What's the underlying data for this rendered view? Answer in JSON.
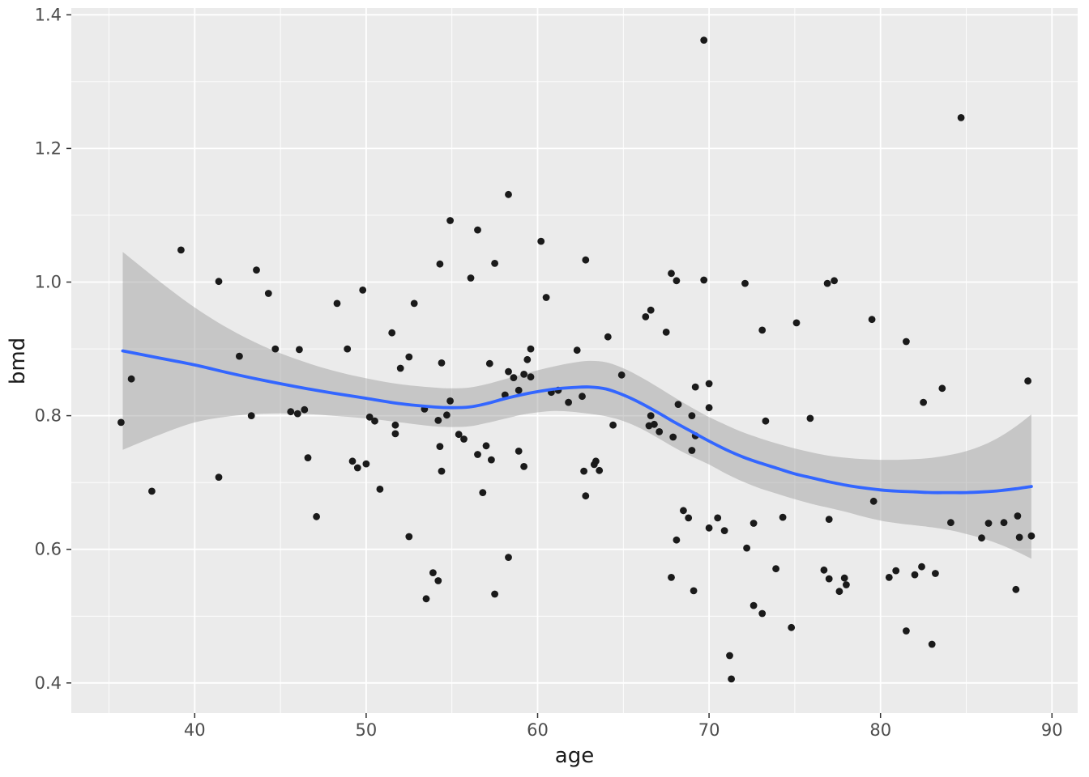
{
  "chart_data": {
    "type": "scatter",
    "title": "",
    "xlabel": "age",
    "ylabel": "bmd",
    "xlim": [
      32.8,
      91.5
    ],
    "ylim": [
      0.355,
      1.41
    ],
    "x_ticks": [
      40,
      50,
      60,
      70,
      80,
      90
    ],
    "x_tick_labels": [
      "40",
      "50",
      "60",
      "70",
      "80",
      "90"
    ],
    "y_ticks": [
      0.4,
      0.6,
      0.8,
      1.0,
      1.2,
      1.4
    ],
    "y_tick_labels": [
      "0.4",
      "0.6",
      "0.8",
      "1.0",
      "1.2",
      "1.4"
    ],
    "x_minor": [
      35,
      45,
      55,
      65,
      75,
      85
    ],
    "y_minor": [
      0.5,
      0.7,
      0.9,
      1.1,
      1.3
    ],
    "grid": true,
    "legend": "none",
    "colors": {
      "panel": "#EBEBEB",
      "grid": "#FFFFFF",
      "point": "#1A1A1A",
      "line": "#3366FF",
      "ribbon": "#999999",
      "ribbon_opacity": 0.45,
      "tick": "#333333",
      "tick_label": "#4D4D4D",
      "axis_title": "#1A1A1A"
    },
    "points": [
      [
        36.3,
        0.855
      ],
      [
        35.7,
        0.79
      ],
      [
        37.5,
        0.687
      ],
      [
        39.2,
        1.048
      ],
      [
        41.4,
        1.001
      ],
      [
        41.4,
        0.708
      ],
      [
        42.6,
        0.889
      ],
      [
        43.6,
        1.018
      ],
      [
        43.3,
        0.8
      ],
      [
        44.3,
        0.983
      ],
      [
        44.7,
        0.9
      ],
      [
        46.1,
        0.899
      ],
      [
        45.6,
        0.806
      ],
      [
        46.4,
        0.809
      ],
      [
        46.0,
        0.803
      ],
      [
        46.6,
        0.737
      ],
      [
        47.1,
        0.649
      ],
      [
        48.3,
        0.968
      ],
      [
        48.9,
        0.9
      ],
      [
        49.2,
        0.732
      ],
      [
        49.5,
        0.722
      ],
      [
        49.8,
        0.988
      ],
      [
        50.0,
        0.728
      ],
      [
        50.2,
        0.798
      ],
      [
        50.5,
        0.792
      ],
      [
        50.8,
        0.69
      ],
      [
        51.5,
        0.924
      ],
      [
        51.7,
        0.786
      ],
      [
        51.7,
        0.773
      ],
      [
        52.0,
        0.871
      ],
      [
        52.5,
        0.888
      ],
      [
        52.5,
        0.619
      ],
      [
        52.8,
        0.968
      ],
      [
        53.4,
        0.81
      ],
      [
        53.5,
        0.526
      ],
      [
        53.9,
        0.565
      ],
      [
        54.2,
        0.553
      ],
      [
        54.2,
        0.793
      ],
      [
        54.3,
        1.027
      ],
      [
        54.3,
        0.754
      ],
      [
        54.4,
        0.879
      ],
      [
        54.4,
        0.717
      ],
      [
        54.7,
        0.801
      ],
      [
        54.9,
        1.092
      ],
      [
        54.9,
        0.822
      ],
      [
        55.4,
        0.772
      ],
      [
        55.7,
        0.765
      ],
      [
        56.1,
        1.006
      ],
      [
        56.5,
        1.078
      ],
      [
        56.5,
        0.742
      ],
      [
        56.8,
        0.685
      ],
      [
        57.0,
        0.755
      ],
      [
        57.2,
        0.878
      ],
      [
        57.3,
        0.734
      ],
      [
        57.5,
        1.028
      ],
      [
        57.5,
        0.533
      ],
      [
        58.1,
        0.831
      ],
      [
        58.3,
        1.131
      ],
      [
        58.3,
        0.866
      ],
      [
        58.3,
        0.588
      ],
      [
        58.6,
        0.857
      ],
      [
        58.9,
        0.838
      ],
      [
        58.9,
        0.747
      ],
      [
        59.2,
        0.862
      ],
      [
        59.2,
        0.724
      ],
      [
        59.4,
        0.884
      ],
      [
        59.6,
        0.9
      ],
      [
        59.6,
        0.858
      ],
      [
        60.2,
        1.061
      ],
      [
        60.5,
        0.977
      ],
      [
        60.8,
        0.835
      ],
      [
        61.2,
        0.838
      ],
      [
        61.8,
        0.82
      ],
      [
        62.3,
        0.898
      ],
      [
        62.6,
        0.829
      ],
      [
        62.7,
        0.717
      ],
      [
        62.8,
        1.033
      ],
      [
        62.8,
        0.68
      ],
      [
        63.3,
        0.727
      ],
      [
        63.4,
        0.732
      ],
      [
        63.6,
        0.718
      ],
      [
        64.1,
        0.918
      ],
      [
        64.4,
        0.786
      ],
      [
        64.9,
        0.861
      ],
      [
        66.3,
        0.948
      ],
      [
        66.5,
        0.785
      ],
      [
        66.6,
        0.958
      ],
      [
        66.6,
        0.8
      ],
      [
        66.8,
        0.787
      ],
      [
        67.1,
        0.776
      ],
      [
        67.5,
        0.925
      ],
      [
        67.8,
        1.013
      ],
      [
        67.8,
        0.558
      ],
      [
        67.9,
        0.768
      ],
      [
        68.1,
        1.002
      ],
      [
        68.1,
        0.614
      ],
      [
        68.2,
        0.817
      ],
      [
        68.5,
        0.658
      ],
      [
        68.8,
        0.647
      ],
      [
        69.0,
        0.8
      ],
      [
        69.0,
        0.748
      ],
      [
        69.1,
        0.538
      ],
      [
        69.2,
        0.843
      ],
      [
        69.2,
        0.77
      ],
      [
        69.7,
        1.362
      ],
      [
        69.7,
        1.003
      ],
      [
        70.0,
        0.848
      ],
      [
        70.0,
        0.812
      ],
      [
        70.0,
        0.632
      ],
      [
        70.5,
        0.647
      ],
      [
        70.9,
        0.628
      ],
      [
        71.2,
        0.441
      ],
      [
        71.3,
        0.406
      ],
      [
        72.1,
        0.998
      ],
      [
        72.2,
        0.602
      ],
      [
        72.6,
        0.639
      ],
      [
        72.6,
        0.516
      ],
      [
        73.1,
        0.928
      ],
      [
        73.1,
        0.504
      ],
      [
        73.3,
        0.792
      ],
      [
        73.9,
        0.571
      ],
      [
        74.3,
        0.648
      ],
      [
        74.8,
        0.483
      ],
      [
        75.1,
        0.939
      ],
      [
        75.9,
        0.796
      ],
      [
        76.7,
        0.569
      ],
      [
        76.9,
        0.998
      ],
      [
        77.0,
        0.645
      ],
      [
        77.0,
        0.556
      ],
      [
        77.3,
        1.002
      ],
      [
        77.6,
        0.537
      ],
      [
        77.9,
        0.557
      ],
      [
        78.0,
        0.547
      ],
      [
        79.5,
        0.944
      ],
      [
        79.6,
        0.672
      ],
      [
        80.5,
        0.558
      ],
      [
        80.9,
        0.568
      ],
      [
        81.5,
        0.911
      ],
      [
        81.5,
        0.478
      ],
      [
        82.0,
        0.562
      ],
      [
        82.4,
        0.574
      ],
      [
        82.5,
        0.82
      ],
      [
        83.0,
        0.458
      ],
      [
        83.2,
        0.564
      ],
      [
        83.6,
        0.841
      ],
      [
        84.1,
        0.64
      ],
      [
        84.7,
        1.246
      ],
      [
        85.9,
        0.617
      ],
      [
        86.3,
        0.639
      ],
      [
        87.2,
        0.64
      ],
      [
        87.9,
        0.54
      ],
      [
        88.0,
        0.65
      ],
      [
        88.1,
        0.618
      ],
      [
        88.6,
        0.852
      ],
      [
        88.8,
        0.62
      ]
    ],
    "smooth": {
      "method": "loess",
      "x": [
        35.8,
        38,
        40,
        42,
        44,
        46,
        48,
        50,
        52,
        54,
        55,
        56,
        57,
        58,
        59,
        60,
        61,
        62,
        63,
        64,
        65,
        66,
        67,
        68,
        69,
        70,
        71,
        72,
        73,
        74,
        75,
        76,
        77,
        78,
        79,
        80,
        81,
        82,
        83,
        84,
        85,
        86,
        87,
        88,
        88.8
      ],
      "y": [
        0.897,
        0.886,
        0.876,
        0.864,
        0.853,
        0.843,
        0.834,
        0.826,
        0.818,
        0.813,
        0.812,
        0.813,
        0.818,
        0.825,
        0.831,
        0.836,
        0.84,
        0.842,
        0.843,
        0.84,
        0.831,
        0.819,
        0.805,
        0.79,
        0.776,
        0.762,
        0.749,
        0.738,
        0.729,
        0.721,
        0.713,
        0.707,
        0.701,
        0.696,
        0.692,
        0.689,
        0.687,
        0.686,
        0.685,
        0.685,
        0.685,
        0.686,
        0.688,
        0.691,
        0.694
      ],
      "upper": [
        1.045,
        1.0,
        0.962,
        0.93,
        0.904,
        0.884,
        0.868,
        0.856,
        0.847,
        0.842,
        0.841,
        0.842,
        0.847,
        0.854,
        0.861,
        0.868,
        0.874,
        0.879,
        0.882,
        0.88,
        0.871,
        0.858,
        0.843,
        0.827,
        0.812,
        0.798,
        0.786,
        0.775,
        0.766,
        0.758,
        0.751,
        0.745,
        0.74,
        0.737,
        0.735,
        0.734,
        0.734,
        0.735,
        0.737,
        0.741,
        0.747,
        0.756,
        0.769,
        0.786,
        0.802
      ],
      "lower": [
        0.749,
        0.772,
        0.79,
        0.799,
        0.803,
        0.803,
        0.8,
        0.796,
        0.79,
        0.784,
        0.783,
        0.784,
        0.789,
        0.795,
        0.801,
        0.805,
        0.807,
        0.806,
        0.803,
        0.799,
        0.792,
        0.781,
        0.767,
        0.752,
        0.739,
        0.727,
        0.713,
        0.701,
        0.691,
        0.683,
        0.675,
        0.668,
        0.662,
        0.656,
        0.649,
        0.643,
        0.639,
        0.636,
        0.633,
        0.629,
        0.623,
        0.616,
        0.607,
        0.596,
        0.586
      ]
    }
  }
}
